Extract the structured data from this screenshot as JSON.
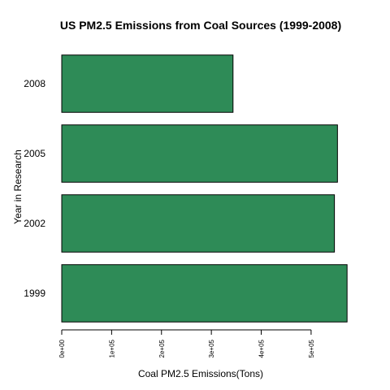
{
  "chart_data": {
    "type": "bar",
    "orientation": "horizontal",
    "title": "US PM2.5 Emissions from Coal Sources (1999-2008)",
    "xlabel": "Coal PM2.5 Emissions(Tons)",
    "ylabel": "Year in Research",
    "categories": [
      "1999",
      "2002",
      "2005",
      "2008"
    ],
    "values": [
      572126,
      546789,
      552881,
      343432
    ],
    "xlim": [
      0,
      580000
    ],
    "x_ticks": [
      0,
      100000,
      200000,
      300000,
      400000,
      500000
    ],
    "x_tick_labels": [
      "0e+00",
      "1e+05",
      "2e+05",
      "3e+05",
      "4e+05",
      "5e+05"
    ],
    "bar_color": "#2E8B57",
    "bar_edge_color": "#000000",
    "grid": false
  }
}
